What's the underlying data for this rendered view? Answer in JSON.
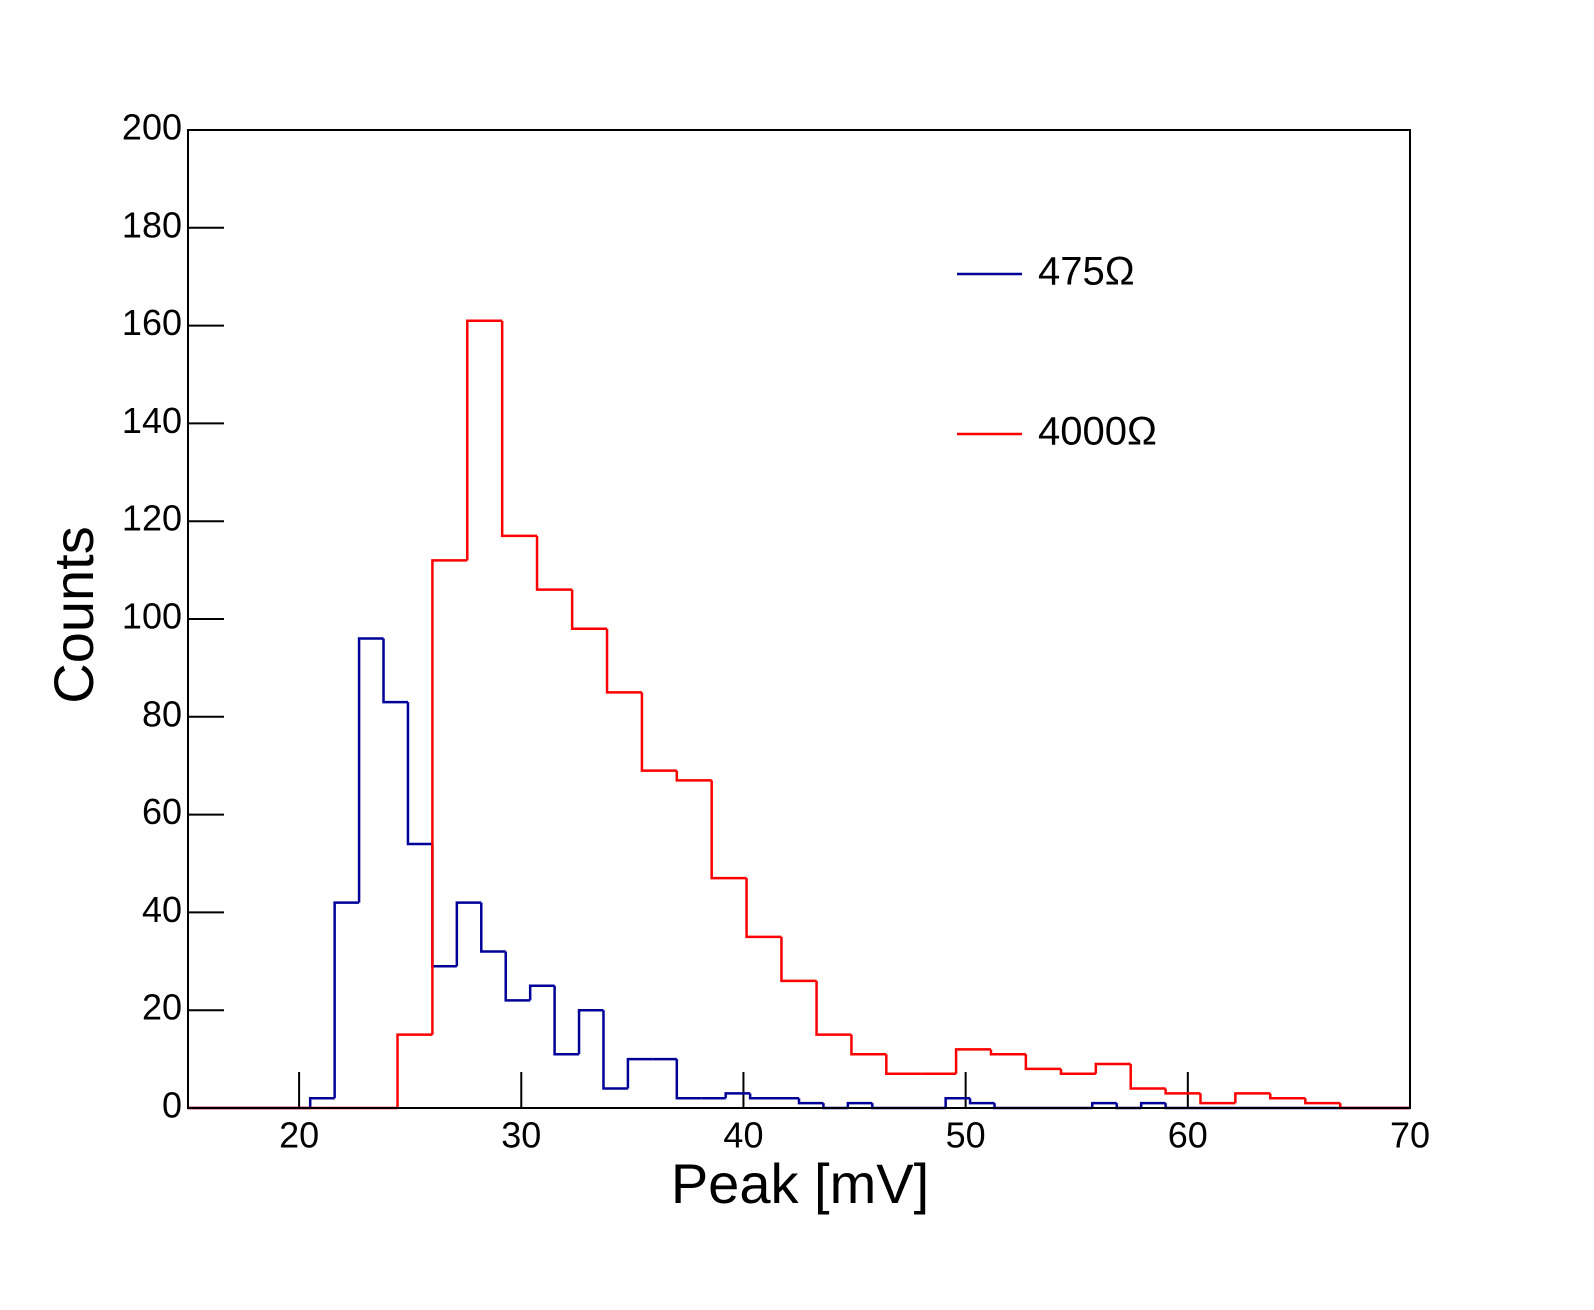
{
  "chart_data": {
    "type": "histogram",
    "xlabel": "Peak [mV]",
    "ylabel": "Counts",
    "xlim": [
      15,
      70
    ],
    "ylim": [
      0,
      200
    ],
    "xticks": [
      20,
      30,
      40,
      50,
      60,
      70
    ],
    "yticks": [
      0,
      20,
      40,
      60,
      80,
      100,
      120,
      140,
      160,
      180,
      200
    ],
    "series": [
      {
        "name": "475Ω",
        "color": "#000099",
        "bins": [
          15,
          16.1,
          17.2,
          18.3,
          19.4,
          20.5,
          21.6,
          22.7,
          23.8,
          24.9,
          26,
          27.1,
          28.2,
          29.3,
          30.4,
          31.5,
          32.6,
          33.7,
          34.8,
          35.9,
          37,
          38.1,
          39.2,
          40.3,
          41.4,
          42.5,
          43.6,
          44.7,
          45.8,
          46.9,
          48,
          49.1,
          50.2,
          51.3,
          52.4,
          53.5,
          54.6,
          55.7,
          56.8,
          57.9,
          59,
          60.1,
          61.2,
          62.3,
          63.4,
          64.5,
          65.6,
          66.7,
          67.8,
          68.9,
          70
        ],
        "values": [
          0,
          0,
          0,
          0,
          0,
          2,
          42,
          96,
          83,
          54,
          29,
          42,
          32,
          22,
          25,
          11,
          20,
          4,
          10,
          10,
          2,
          2,
          3,
          2,
          2,
          1,
          0,
          1,
          0,
          0,
          0,
          2,
          1,
          0,
          0,
          0,
          0,
          1,
          0,
          1,
          0,
          0,
          0,
          0,
          0,
          0,
          0,
          0,
          0,
          0
        ]
      },
      {
        "name": "4000Ω",
        "color": "#ff0000",
        "bins": [
          15,
          16.57,
          18.14,
          19.71,
          21.29,
          22.86,
          24.43,
          26,
          27.57,
          29.14,
          30.71,
          32.29,
          33.86,
          35.43,
          37,
          38.57,
          40.14,
          41.71,
          43.29,
          44.86,
          46.43,
          48,
          49.57,
          51.14,
          52.71,
          54.29,
          55.86,
          57.43,
          59,
          60.57,
          62.14,
          63.71,
          65.29,
          66.86,
          68.43,
          70
        ],
        "values": [
          0,
          0,
          0,
          0,
          0,
          0,
          15,
          112,
          161,
          117,
          106,
          98,
          85,
          69,
          67,
          47,
          35,
          26,
          15,
          11,
          7,
          7,
          12,
          11,
          8,
          7,
          9,
          4,
          3,
          1,
          3,
          2,
          1,
          0,
          0
        ]
      }
    ]
  }
}
